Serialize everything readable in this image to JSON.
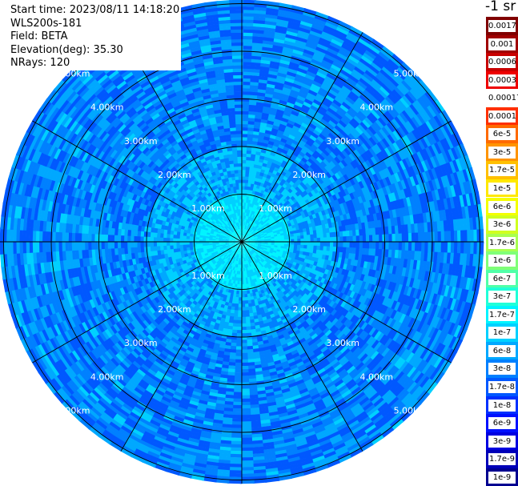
{
  "header": {
    "start_time": "Start time: 2023/08/11 14:18:20",
    "instrument": "WLS200s-181",
    "field": "Field: BETA",
    "elevation": "Elevation(deg): 35.30",
    "nrays": "NRays: 120"
  },
  "colorbar": {
    "unit": "-1 sr",
    "labels": [
      "0.0017",
      "0.001",
      "0.0006",
      "0.0003",
      "0.00017",
      "0.0001",
      "6e-5",
      "3e-5",
      "1.7e-5",
      "1e-5",
      "6e-6",
      "3e-6",
      "1.7e-6",
      "1e-6",
      "6e-7",
      "3e-7",
      "1.7e-7",
      "1e-7",
      "6e-8",
      "3e-8",
      "1.7e-8",
      "1e-8",
      "6e-9",
      "3e-9",
      "1.7e-9",
      "1e-9"
    ],
    "colors": [
      "#800000",
      "#a00000",
      "#c80000",
      "#ee0000",
      "#ffffff",
      "#ff3000",
      "#ff6a00",
      "#ff9400",
      "#ffc000",
      "#ffe800",
      "#f4ff00",
      "#d0ff20",
      "#a8ff50",
      "#80ff78",
      "#50ffa8",
      "#20ffd8",
      "#00f4ff",
      "#00d0ff",
      "#00a8ff",
      "#0080ff",
      "#0058ff",
      "#0030ff",
      "#0010ff",
      "#0000e0",
      "#0000b8",
      "#000090"
    ]
  },
  "chart_data": {
    "type": "ppi",
    "field": "BETA",
    "elevation_deg": 35.3,
    "n_rays": 120,
    "range_rings_km": [
      1,
      2,
      3,
      4,
      5
    ],
    "range_ring_labels": [
      "1.00km",
      "2.00km",
      "3.00km",
      "4.00km",
      "5.00km"
    ],
    "spokes_deg": [
      0,
      30,
      60,
      90,
      120,
      150,
      180,
      210,
      240,
      270,
      300,
      330
    ],
    "max_range_km": 5.9,
    "color_scale": "log",
    "value_range": [
      1e-09,
      0.0017
    ],
    "background_level": "1e-8 to 3e-8",
    "enhanced_ring": {
      "range_km": [
        5.5,
        5.9
      ],
      "level": "6e-7 to 3e-5",
      "azimuth_deg": [
        90,
        210
      ]
    }
  }
}
